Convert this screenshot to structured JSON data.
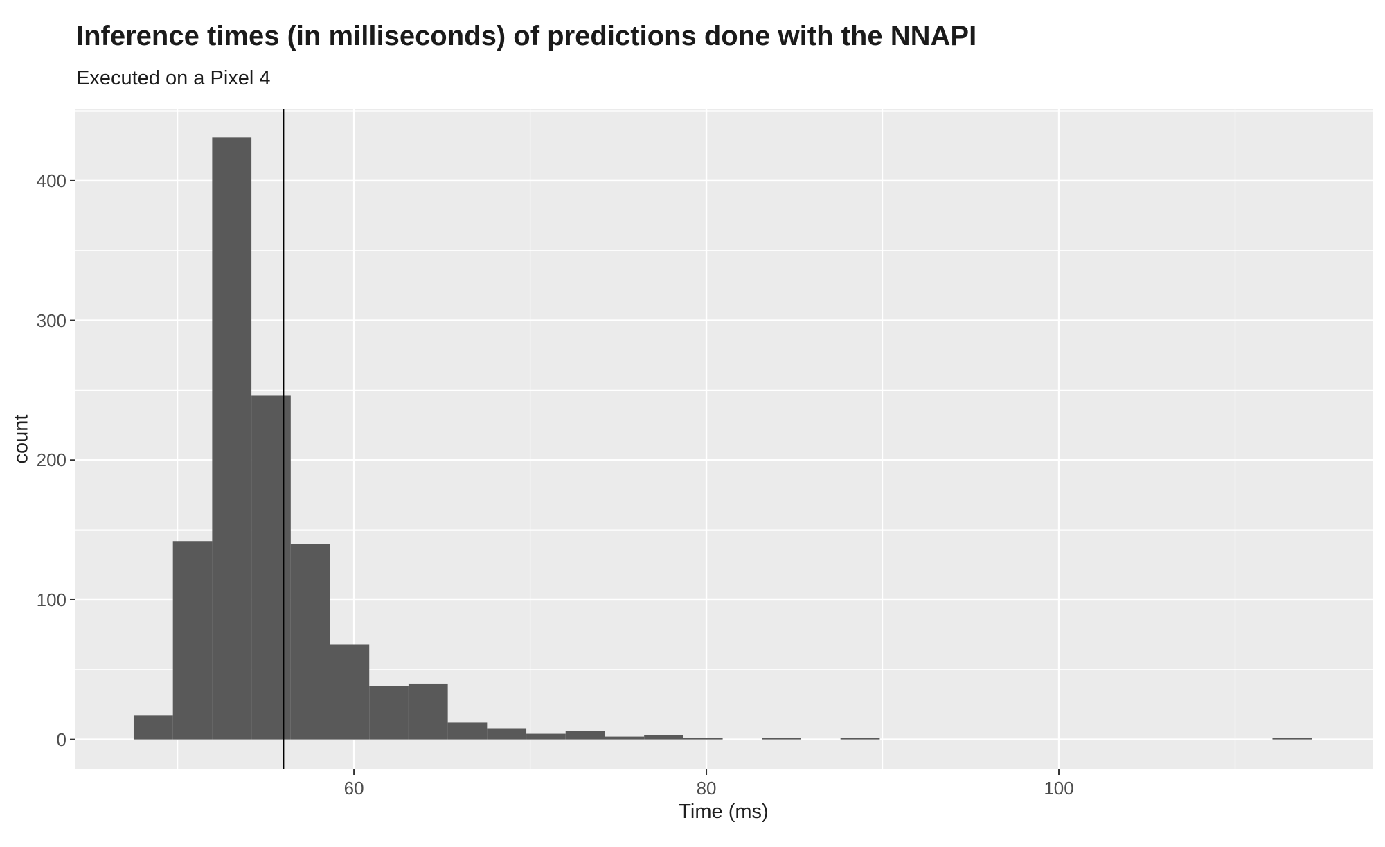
{
  "header": {
    "title": "Inference times (in milliseconds) of predictions done with the NNAPI",
    "subtitle": "Executed on a Pixel 4"
  },
  "chart_data": {
    "type": "bar",
    "subtype": "histogram",
    "title": "Inference times (in milliseconds) of predictions done with the NNAPI",
    "subtitle": "Executed on a Pixel 4",
    "xlabel": "Time (ms)",
    "ylabel": "count",
    "bin_start": 47.5,
    "bin_width": 2.2283,
    "counts": [
      17,
      142,
      431,
      246,
      140,
      68,
      38,
      40,
      12,
      8,
      4,
      6,
      2,
      3,
      1,
      0,
      1,
      0,
      1,
      0,
      0,
      0,
      0,
      0,
      0,
      0,
      0,
      0,
      0,
      1
    ],
    "vline_x": 56.0,
    "x_axis": {
      "range": [
        44.2,
        117.8
      ],
      "ticks": [
        {
          "value": 60,
          "label": "60"
        },
        {
          "value": 80,
          "label": "80"
        },
        {
          "value": 100,
          "label": "100"
        }
      ],
      "minor_ticks": [
        50,
        70,
        90,
        110
      ]
    },
    "y_axis": {
      "range": [
        -21.5,
        451.5
      ],
      "ticks": [
        {
          "value": 0,
          "label": "0"
        },
        {
          "value": 100,
          "label": "100"
        },
        {
          "value": 200,
          "label": "200"
        },
        {
          "value": 300,
          "label": "300"
        },
        {
          "value": 400,
          "label": "400"
        }
      ],
      "minor_ticks": [
        50,
        150,
        250,
        350,
        450
      ]
    },
    "grid": "on",
    "legend_position": "none",
    "colors": {
      "bar_fill": "#595959",
      "panel_background": "#EBEBEB",
      "gridline": "#FFFFFF",
      "vline": "#000000",
      "tick_label": "#4D4D4D",
      "tick_mark": "#333333",
      "title_text": "#1B1B1B"
    }
  }
}
